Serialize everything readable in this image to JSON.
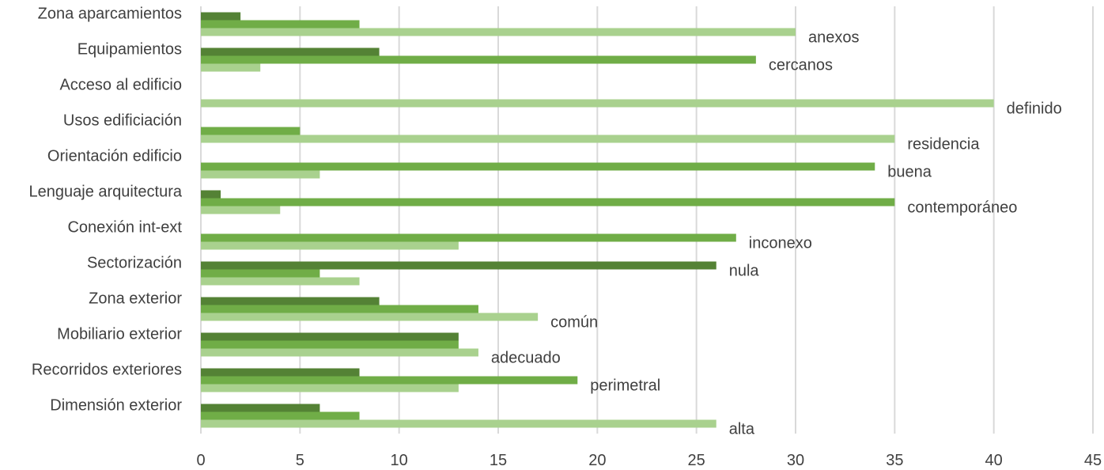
{
  "chart_data": {
    "type": "bar",
    "orientation": "horizontal",
    "categories": [
      "Zona aparcamientos",
      "Equipamientos",
      "Acceso al edificio",
      "Usos edificiación",
      "Orientación edificio",
      "Lenguaje arquitectura",
      "Conexión int-ext",
      "Sectorización",
      "Zona exterior",
      "Mobiliario exterior",
      "Recorridos exteriores",
      "Dimensión exterior"
    ],
    "series": [
      {
        "color": "#548235",
        "values": [
          2,
          9,
          0,
          0,
          0,
          1,
          0,
          26,
          9,
          13,
          8,
          6
        ]
      },
      {
        "color": "#70ad47",
        "values": [
          8,
          28,
          0,
          5,
          34,
          35,
          27,
          6,
          14,
          13,
          19,
          8
        ]
      },
      {
        "color": "#a9d18e",
        "values": [
          30,
          3,
          40,
          35,
          6,
          4,
          13,
          8,
          17,
          14,
          13,
          26
        ]
      }
    ],
    "data_labels": [
      "anexos",
      "cercanos",
      "definido",
      "residencia",
      "buena",
      "contemporáneo",
      "inconexo",
      "nula",
      "común",
      "adecuado",
      "perimetral",
      "alta"
    ],
    "xlim": [
      0,
      45
    ],
    "xticks": [
      "0",
      "5",
      "10",
      "15",
      "20",
      "25",
      "30",
      "35",
      "40",
      "45"
    ],
    "grid": true,
    "title": "",
    "xlabel": "",
    "ylabel": ""
  }
}
